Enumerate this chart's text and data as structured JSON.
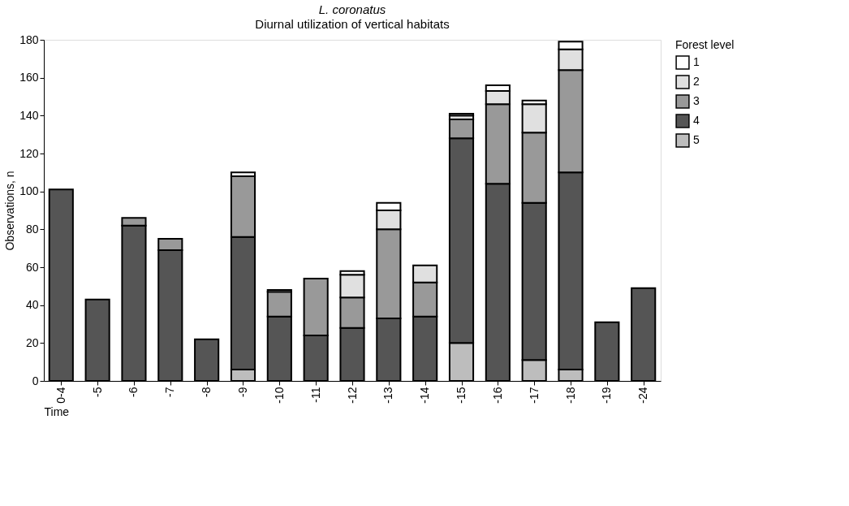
{
  "chart_data": {
    "type": "bar",
    "title": "L. coronatus",
    "subtitle": "Diurnal utilization of vertical habitats",
    "xlabel": "Time",
    "ylabel": "Observations, n",
    "legend_title": "Forest level",
    "stacked": true,
    "grid": false,
    "legend": "right",
    "categories": [
      "0-4",
      "-5",
      "-6",
      "-7",
      "-8",
      "-9",
      "-10",
      "-11",
      "-12",
      "-13",
      "-14",
      "-15",
      "-16",
      "-17",
      "-18",
      "-19",
      "-24"
    ],
    "ylim": [
      0,
      180
    ],
    "yticks": [
      0,
      20,
      40,
      60,
      80,
      100,
      120,
      140,
      160,
      180
    ],
    "series": [
      {
        "name": "5",
        "color": "#bdbdbd",
        "values": [
          null,
          null,
          null,
          null,
          null,
          6,
          null,
          null,
          null,
          null,
          null,
          20,
          null,
          11,
          6,
          null,
          null
        ]
      },
      {
        "name": "4",
        "color": "#555555",
        "values": [
          101,
          43,
          82,
          69,
          22,
          70,
          34,
          24,
          28,
          33,
          34,
          108,
          104,
          83,
          104,
          31,
          49
        ]
      },
      {
        "name": "3",
        "color": "#999999",
        "values": [
          null,
          null,
          4,
          6,
          null,
          32,
          13,
          30,
          16,
          47,
          18,
          10,
          42,
          37,
          54,
          null,
          null
        ]
      },
      {
        "name": "2",
        "color": "#e0e0e0",
        "values": [
          null,
          null,
          null,
          null,
          null,
          null,
          null,
          null,
          12,
          10,
          9,
          2,
          7,
          15,
          11,
          null,
          null
        ]
      },
      {
        "name": "1",
        "color": "#ffffff",
        "values": [
          null,
          null,
          null,
          null,
          null,
          2,
          1,
          null,
          2,
          4,
          null,
          1,
          3,
          2,
          4,
          null,
          null
        ]
      }
    ]
  }
}
